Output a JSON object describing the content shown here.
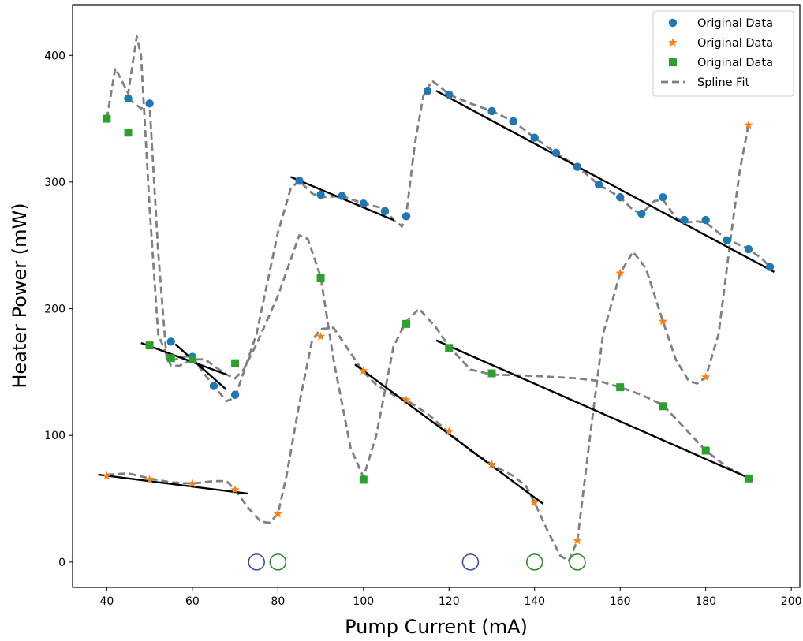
{
  "chart_data": {
    "type": "scatter",
    "title": "",
    "xlabel": "Pump Current (mA)",
    "ylabel": "Heater Power (mW)",
    "xlim": [
      32,
      202
    ],
    "ylim": [
      -20,
      440
    ],
    "xticks": [
      40,
      60,
      80,
      100,
      120,
      140,
      160,
      180,
      200
    ],
    "yticks": [
      0,
      100,
      200,
      300,
      400
    ],
    "grid": false,
    "legend_position": "top-right",
    "colors": {
      "blue": "#1f77b4",
      "orange": "#ff7f0e",
      "green": "#2ca02c",
      "spline": "#808080",
      "fit": "#000000",
      "circle_blue": "#3a4ea0",
      "circle_green": "#2a8a2a"
    },
    "legend": [
      {
        "label": "Original Data",
        "marker": "circle",
        "color": "#1f77b4"
      },
      {
        "label": "Original Data",
        "marker": "star",
        "color": "#ff7f0e"
      },
      {
        "label": "Original Data",
        "marker": "square",
        "color": "#2ca02c"
      },
      {
        "label": "Spline Fit",
        "marker": "dashed-line",
        "color": "#808080"
      }
    ],
    "series": [
      {
        "marker": "circle",
        "color": "#1f77b4",
        "points": [
          [
            45,
            366
          ],
          [
            50,
            362
          ],
          [
            55,
            174
          ],
          [
            60,
            162
          ],
          [
            65,
            139
          ],
          [
            70,
            132
          ],
          [
            85,
            301
          ],
          [
            90,
            290
          ],
          [
            95,
            289
          ],
          [
            100,
            283
          ],
          [
            105,
            277
          ],
          [
            110,
            273
          ],
          [
            115,
            372
          ],
          [
            120,
            369
          ],
          [
            130,
            356
          ],
          [
            135,
            348
          ],
          [
            140,
            335
          ],
          [
            145,
            323
          ],
          [
            150,
            312
          ],
          [
            155,
            298
          ],
          [
            160,
            288
          ],
          [
            165,
            275
          ],
          [
            170,
            288
          ],
          [
            175,
            270
          ],
          [
            180,
            270
          ],
          [
            185,
            254
          ],
          [
            190,
            247
          ],
          [
            195,
            233
          ]
        ]
      },
      {
        "marker": "star",
        "color": "#ff7f0e",
        "points": [
          [
            40,
            68
          ],
          [
            50,
            65
          ],
          [
            60,
            62
          ],
          [
            70,
            57
          ],
          [
            80,
            38
          ],
          [
            90,
            178
          ],
          [
            100,
            151
          ],
          [
            110,
            128
          ],
          [
            120,
            103
          ],
          [
            130,
            77
          ],
          [
            140,
            47
          ],
          [
            150,
            17
          ],
          [
            160,
            228
          ],
          [
            170,
            190
          ],
          [
            180,
            146
          ],
          [
            190,
            345
          ]
        ]
      },
      {
        "marker": "square",
        "color": "#2ca02c",
        "points": [
          [
            40,
            350
          ],
          [
            45,
            339
          ],
          [
            50,
            171
          ],
          [
            55,
            161
          ],
          [
            60,
            160
          ],
          [
            70,
            157
          ],
          [
            90,
            224
          ],
          [
            100,
            65
          ],
          [
            110,
            188
          ],
          [
            120,
            169
          ],
          [
            130,
            149
          ],
          [
            160,
            138
          ],
          [
            170,
            123
          ],
          [
            180,
            88
          ],
          [
            190,
            66
          ]
        ]
      }
    ],
    "splines": [
      [
        [
          40,
          350
        ],
        [
          42,
          390
        ],
        [
          45,
          370
        ],
        [
          47,
          415
        ],
        [
          48,
          400
        ],
        [
          50,
          280
        ],
        [
          52,
          180
        ],
        [
          55,
          155
        ],
        [
          57,
          155
        ],
        [
          60,
          160
        ],
        [
          63,
          160
        ],
        [
          65,
          155
        ],
        [
          68,
          148
        ],
        [
          70,
          145
        ],
        [
          72,
          152
        ],
        [
          75,
          172
        ],
        [
          80,
          210
        ],
        [
          85,
          258
        ],
        [
          87,
          255
        ],
        [
          90,
          225
        ],
        [
          93,
          160
        ],
        [
          97,
          90
        ],
        [
          100,
          67
        ],
        [
          103,
          100
        ],
        [
          107,
          170
        ],
        [
          110,
          190
        ],
        [
          113,
          200
        ],
        [
          117,
          185
        ],
        [
          120,
          170
        ],
        [
          125,
          152
        ],
        [
          130,
          148
        ],
        [
          140,
          147
        ],
        [
          150,
          145
        ],
        [
          155,
          143
        ],
        [
          160,
          138
        ],
        [
          165,
          132
        ],
        [
          170,
          124
        ],
        [
          175,
          106
        ],
        [
          180,
          88
        ],
        [
          185,
          75
        ],
        [
          190,
          66
        ]
      ],
      [
        [
          40,
          69
        ],
        [
          45,
          70
        ],
        [
          50,
          66
        ],
        [
          55,
          63
        ],
        [
          60,
          62
        ],
        [
          65,
          64
        ],
        [
          68,
          64
        ],
        [
          70,
          57
        ],
        [
          73,
          43
        ],
        [
          76,
          32
        ],
        [
          78,
          31
        ],
        [
          80,
          38
        ],
        [
          82,
          68
        ],
        [
          85,
          125
        ],
        [
          88,
          175
        ],
        [
          90,
          184
        ],
        [
          93,
          185
        ],
        [
          96,
          170
        ],
        [
          100,
          150
        ],
        [
          103,
          140
        ],
        [
          107,
          132
        ],
        [
          110,
          128
        ],
        [
          115,
          117
        ],
        [
          120,
          102
        ],
        [
          125,
          88
        ],
        [
          130,
          77
        ],
        [
          135,
          68
        ],
        [
          138,
          60
        ],
        [
          140,
          47
        ],
        [
          143,
          25
        ],
        [
          146,
          5
        ],
        [
          148,
          1
        ],
        [
          150,
          17
        ],
        [
          153,
          100
        ],
        [
          156,
          180
        ],
        [
          160,
          228
        ],
        [
          163,
          245
        ],
        [
          166,
          232
        ],
        [
          170,
          190
        ],
        [
          173,
          160
        ],
        [
          176,
          143
        ],
        [
          178,
          141
        ],
        [
          180,
          146
        ],
        [
          183,
          180
        ],
        [
          186,
          260
        ],
        [
          188,
          310
        ],
        [
          190,
          345
        ]
      ],
      [
        [
          45,
          366
        ],
        [
          48,
          358
        ],
        [
          50,
          362
        ],
        [
          52,
          245
        ],
        [
          54,
          160
        ],
        [
          56,
          160
        ],
        [
          58,
          162
        ],
        [
          60,
          163
        ],
        [
          62,
          152
        ],
        [
          65,
          139
        ],
        [
          68,
          127
        ],
        [
          70,
          130
        ],
        [
          75,
          180
        ],
        [
          80,
          260
        ],
        [
          83,
          295
        ],
        [
          85,
          301
        ],
        [
          88,
          291
        ],
        [
          90,
          288
        ],
        [
          95,
          289
        ],
        [
          100,
          283
        ],
        [
          105,
          279
        ],
        [
          107,
          270
        ],
        [
          109,
          265
        ],
        [
          110,
          274
        ],
        [
          112,
          330
        ],
        [
          114,
          368
        ],
        [
          116,
          380
        ],
        [
          118,
          375
        ],
        [
          120,
          369
        ],
        [
          125,
          362
        ],
        [
          130,
          356
        ],
        [
          135,
          348
        ],
        [
          140,
          335
        ],
        [
          145,
          323
        ],
        [
          150,
          312
        ],
        [
          155,
          298
        ],
        [
          160,
          288
        ],
        [
          163,
          278
        ],
        [
          165,
          275
        ],
        [
          168,
          285
        ],
        [
          170,
          286
        ],
        [
          173,
          272
        ],
        [
          175,
          268
        ],
        [
          178,
          269
        ],
        [
          180,
          268
        ],
        [
          183,
          260
        ],
        [
          185,
          255
        ],
        [
          190,
          247
        ],
        [
          193,
          240
        ],
        [
          195,
          233
        ]
      ]
    ],
    "fit_lines": [
      [
        [
          38,
          69
        ],
        [
          73,
          54
        ]
      ],
      [
        [
          48,
          173
        ],
        [
          68,
          148
        ]
      ],
      [
        [
          56,
          172
        ],
        [
          68,
          136
        ]
      ],
      [
        [
          83,
          304
        ],
        [
          107,
          270
        ]
      ],
      [
        [
          117,
          372
        ],
        [
          196,
          229
        ]
      ],
      [
        [
          98,
          156
        ],
        [
          142,
          46
        ]
      ],
      [
        [
          117,
          175
        ],
        [
          191,
          65
        ]
      ]
    ],
    "open_circles": [
      {
        "x": 75,
        "y": 0,
        "color": "#3a4ea0"
      },
      {
        "x": 80,
        "y": 0,
        "color": "#2a8a2a"
      },
      {
        "x": 125,
        "y": 0,
        "color": "#3a4ea0"
      },
      {
        "x": 140,
        "y": 0,
        "color": "#2a8a2a"
      },
      {
        "x": 150,
        "y": 0,
        "color": "#2a8a2a"
      }
    ]
  }
}
